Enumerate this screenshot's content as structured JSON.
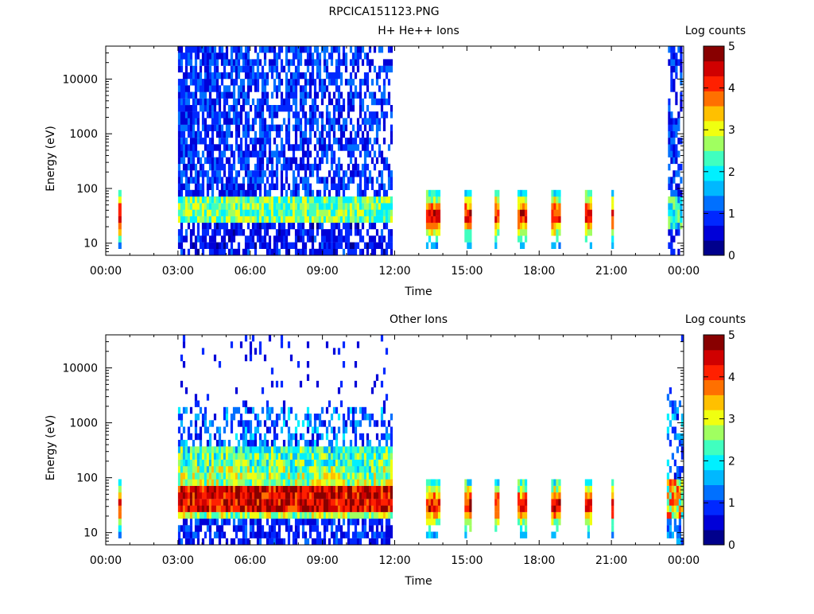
{
  "page_title": "RPCICA151123.PNG",
  "colorbar": {
    "colors": [
      "#00008c",
      "#0000d8",
      "#0028ff",
      "#0070ff",
      "#00b8ff",
      "#00f0ff",
      "#40ffbf",
      "#a0ff60",
      "#f0ff10",
      "#ffc000",
      "#ff7000",
      "#ff2000",
      "#d00000",
      "#880000"
    ]
  },
  "chart_data": [
    {
      "type": "heatmap",
      "title": "H+ He++ Ions",
      "xlabel": "Time",
      "ylabel": "Energy (eV)",
      "x_ticks": [
        "00:00",
        "03:00",
        "06:00",
        "09:00",
        "12:00",
        "15:00",
        "18:00",
        "21:00",
        "00:00"
      ],
      "xlim_hours": [
        0,
        24
      ],
      "y_scale": "log",
      "y_ticks": [
        "10",
        "100",
        "1000",
        "10000"
      ],
      "ylim": [
        6,
        40000
      ],
      "colorbar_label": "Log counts",
      "colorbar_ticks": [
        "0",
        "1",
        "2",
        "3",
        "4",
        "5"
      ],
      "zlim": [
        0,
        5
      ],
      "segments": [
        {
          "t0": 0.52,
          "t1": 0.65,
          "profile": "narrow"
        },
        {
          "t0": 3.0,
          "t1": 11.9,
          "profile": "hp_dense"
        },
        {
          "t0": 13.3,
          "t1": 13.9,
          "profile": "burst"
        },
        {
          "t0": 14.9,
          "t1": 15.2,
          "profile": "burst"
        },
        {
          "t0": 16.15,
          "t1": 16.3,
          "profile": "burst"
        },
        {
          "t0": 17.1,
          "t1": 17.5,
          "profile": "burst"
        },
        {
          "t0": 18.5,
          "t1": 18.85,
          "profile": "burst"
        },
        {
          "t0": 19.9,
          "t1": 20.15,
          "profile": "burst"
        },
        {
          "t0": 21.0,
          "t1": 21.1,
          "profile": "narrow"
        },
        {
          "t0": 23.35,
          "t1": 23.95,
          "profile": "hp_end"
        }
      ]
    },
    {
      "type": "heatmap",
      "title": "Other Ions",
      "xlabel": "Time",
      "ylabel": "Energy (eV)",
      "x_ticks": [
        "00:00",
        "03:00",
        "06:00",
        "09:00",
        "12:00",
        "15:00",
        "18:00",
        "21:00",
        "00:00"
      ],
      "xlim_hours": [
        0,
        24
      ],
      "y_scale": "log",
      "y_ticks": [
        "10",
        "100",
        "1000",
        "10000"
      ],
      "ylim": [
        6,
        40000
      ],
      "colorbar_label": "Log counts",
      "colorbar_ticks": [
        "0",
        "1",
        "2",
        "3",
        "4",
        "5"
      ],
      "zlim": [
        0,
        5
      ],
      "segments": [
        {
          "t0": 0.52,
          "t1": 0.65,
          "profile": "narrow"
        },
        {
          "t0": 3.0,
          "t1": 11.9,
          "profile": "other_dense"
        },
        {
          "t0": 13.3,
          "t1": 13.9,
          "profile": "burst"
        },
        {
          "t0": 14.9,
          "t1": 15.2,
          "profile": "burst"
        },
        {
          "t0": 16.15,
          "t1": 16.3,
          "profile": "burst"
        },
        {
          "t0": 17.1,
          "t1": 17.5,
          "profile": "burst"
        },
        {
          "t0": 18.5,
          "t1": 18.85,
          "profile": "burst"
        },
        {
          "t0": 19.9,
          "t1": 20.15,
          "profile": "burst"
        },
        {
          "t0": 21.0,
          "t1": 21.1,
          "profile": "narrow"
        },
        {
          "t0": 23.3,
          "t1": 23.95,
          "profile": "other_end"
        }
      ]
    }
  ]
}
